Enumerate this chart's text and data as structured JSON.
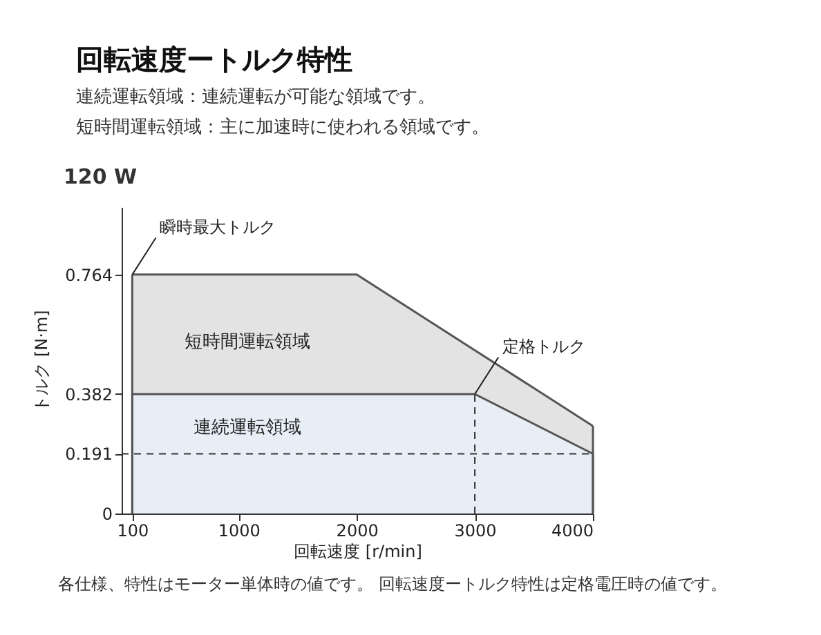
{
  "chart_data": {
    "type": "area",
    "title": "回転速度ートルク特性",
    "subtitle": [
      "連続運転領域：連続運転が可能な領域です。",
      "短時間運転領域：主に加速時に使われる領域です。"
    ],
    "xlabel": "回転速度 [r/min]",
    "ylabel": "トルク [N·m]",
    "series": [
      {
        "name": "短時間運転領域",
        "color": "#e3e3e3",
        "x": [
          100,
          2000,
          4000
        ],
        "values": [
          0.764,
          0.764,
          0.28
        ]
      },
      {
        "name": "連続運転領域",
        "color": "#e8eef6",
        "x": [
          100,
          3000,
          4000
        ],
        "values": [
          0.382,
          0.382,
          0.191
        ]
      }
    ],
    "xlim": [
      10,
      4000
    ],
    "xticks": [
      100,
      1000,
      2000,
      3000,
      4000
    ],
    "ylim": [
      0,
      0.98
    ],
    "yticks": [
      0,
      0.191,
      0.382,
      0.764
    ],
    "ref_lines": [
      {
        "axis": "y",
        "value": 0.191,
        "line_style": "dashed",
        "color": "#333333"
      },
      {
        "axis": "x",
        "value": 3000,
        "line_style": "dashed",
        "color": "#333333"
      }
    ],
    "annotations": [
      "120 W",
      {
        "text": "瞬時最大トルク",
        "x": 100,
        "y": 0.764
      },
      {
        "text": "定格トルク",
        "x": 3000,
        "y": 0.382
      },
      "各仕様、特性はモーター単体時の値です。 回転速度ートルク特性は定格電圧時の値です。"
    ],
    "tick_labels": "xy"
  }
}
